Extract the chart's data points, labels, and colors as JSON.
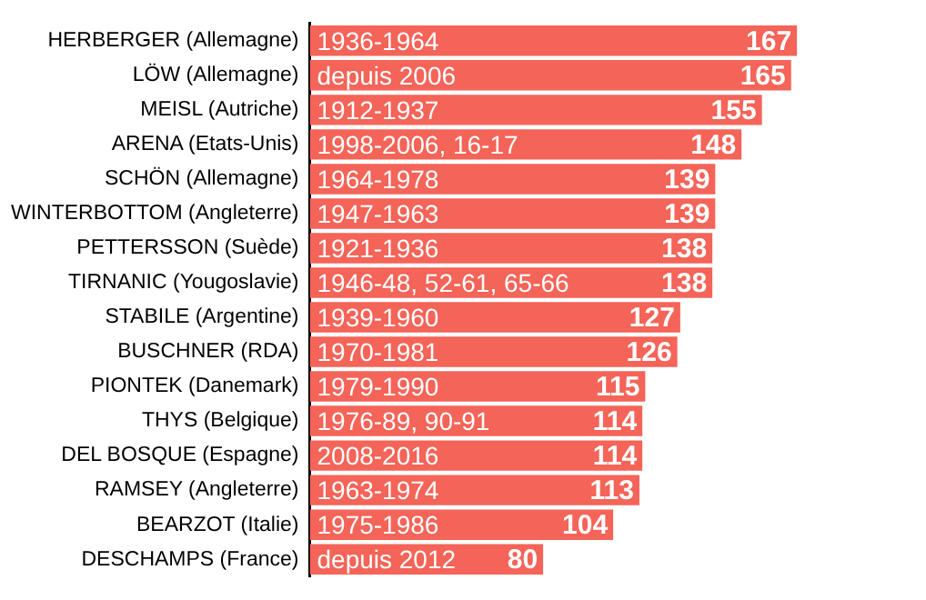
{
  "chart_data": {
    "type": "bar",
    "orientation": "horizontal",
    "categories": [
      "HERBERGER (Allemagne)",
      "LÖW (Allemagne)",
      "MEISL (Autriche)",
      "ARENA (Etats-Unis)",
      "SCHÖN (Allemagne)",
      "WINTERBOTTOM (Angleterre)",
      "PETTERSSON (Suède)",
      "TIRNANIC (Yougoslavie)",
      "STABILE (Argentine)",
      "BUSCHNER (RDA)",
      "PIONTEK (Danemark)",
      "THYS (Belgique)",
      "DEL BOSQUE (Espagne)",
      "RAMSEY (Angleterre)",
      "BEARZOT (Italie)",
      "DESCHAMPS (France)"
    ],
    "values": [
      167,
      165,
      155,
      148,
      139,
      139,
      138,
      138,
      127,
      126,
      115,
      114,
      114,
      113,
      104,
      80
    ],
    "color": "#f46458",
    "data_labels": true,
    "annotations": [
      {
        "text": "1936-1964",
        "y": "HERBERGER (Allemagne)"
      },
      {
        "text": "depuis 2006",
        "y": "LÖW (Allemagne)"
      },
      {
        "text": "1912-1937",
        "y": "MEISL (Autriche)"
      },
      {
        "text": "1998-2006, 16-17",
        "y": "ARENA (Etats-Unis)"
      },
      {
        "text": "1964-1978",
        "y": "SCHÖN (Allemagne)"
      },
      {
        "text": "1947-1963",
        "y": "WINTERBOTTOM (Angleterre)"
      },
      {
        "text": "1921-1936",
        "y": "PETTERSSON (Suède)"
      },
      {
        "text": "1946-48, 52-61, 65-66",
        "y": "TIRNANIC (Yougoslavie)"
      },
      {
        "text": "1939-1960",
        "y": "STABILE (Argentine)"
      },
      {
        "text": "1970-1981",
        "y": "BUSCHNER (RDA)"
      },
      {
        "text": "1979-1990",
        "y": "PIONTEK (Danemark)"
      },
      {
        "text": "1976-89, 90-91",
        "y": "THYS (Belgique)"
      },
      {
        "text": "2008-2016",
        "y": "DEL BOSQUE (Espagne)"
      },
      {
        "text": "1963-1974",
        "y": "RAMSEY (Angleterre)"
      },
      {
        "text": "1975-1986",
        "y": "BEARZOT (Italie)"
      },
      {
        "text": "depuis 2012",
        "y": "DESCHAMPS (France)"
      }
    ],
    "legend": false
  }
}
